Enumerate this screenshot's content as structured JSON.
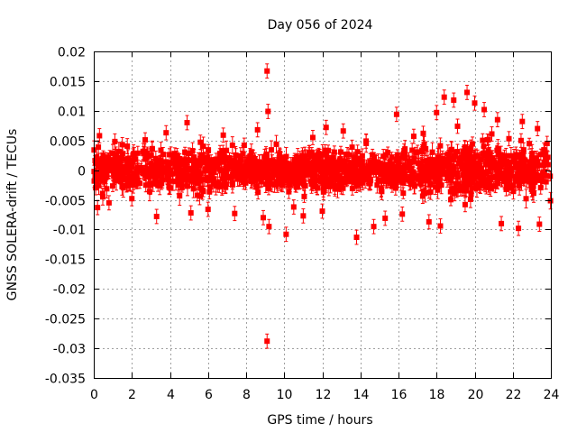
{
  "chart_data": {
    "type": "scatter",
    "title": "Day 056 of 2024",
    "xlabel": "GPS time / hours",
    "ylabel": "GNSS SOLERA-drift / TECUs",
    "xlim": [
      0,
      24
    ],
    "ylim": [
      -0.035,
      0.02
    ],
    "x_ticks": [
      0,
      2,
      4,
      6,
      8,
      10,
      12,
      14,
      16,
      18,
      20,
      22,
      24
    ],
    "x_tick_labels": [
      "0",
      "2",
      "4",
      "6",
      "8",
      "10",
      "12",
      "14",
      "16",
      "18",
      "20",
      "22",
      "24"
    ],
    "y_ticks": [
      0.02,
      0.015,
      0.01,
      0.005,
      0,
      -0.005,
      -0.01,
      -0.015,
      -0.02,
      -0.025,
      -0.03,
      -0.035
    ],
    "y_tick_labels": [
      "0.02",
      "0.015",
      "0.01",
      "0.005",
      "0",
      "-0.005",
      "-0.01",
      "-0.015",
      "-0.02",
      "-0.025",
      "-0.03",
      "-0.035"
    ],
    "grid": true,
    "color": "#ff0000",
    "series": [
      {
        "name": "SOLERA-drift",
        "marker": "square",
        "error_bars": true,
        "points": [
          [
            9.1,
            0.0167
          ],
          [
            9.15,
            0.0099
          ],
          [
            9.1,
            -0.0288
          ],
          [
            9.2,
            -0.0095
          ],
          [
            10.1,
            -0.0108
          ],
          [
            13.8,
            -0.0113
          ],
          [
            19.6,
            0.0131
          ],
          [
            18.4,
            0.0123
          ],
          [
            18.9,
            0.0118
          ],
          [
            20.0,
            0.0113
          ],
          [
            20.5,
            0.0102
          ],
          [
            18.0,
            0.0097
          ],
          [
            15.9,
            0.0094
          ],
          [
            21.2,
            0.0085
          ],
          [
            22.5,
            0.0082
          ],
          [
            4.9,
            0.008
          ],
          [
            12.2,
            0.0072
          ],
          [
            8.6,
            0.0068
          ],
          [
            23.3,
            0.007
          ],
          [
            0.3,
            0.0058
          ],
          [
            0.2,
            -0.0063
          ],
          [
            0.8,
            -0.0055
          ],
          [
            3.3,
            -0.0078
          ],
          [
            5.1,
            -0.0072
          ],
          [
            6.0,
            -0.0066
          ],
          [
            7.4,
            -0.0073
          ],
          [
            8.9,
            -0.008
          ],
          [
            10.5,
            -0.0062
          ],
          [
            11.0,
            -0.0077
          ],
          [
            12.0,
            -0.0069
          ],
          [
            15.3,
            -0.0081
          ],
          [
            14.7,
            -0.0095
          ],
          [
            17.6,
            -0.0087
          ],
          [
            18.2,
            -0.0094
          ],
          [
            21.4,
            -0.009
          ],
          [
            22.3,
            -0.0098
          ],
          [
            23.4,
            -0.0091
          ],
          [
            19.5,
            -0.0058
          ],
          [
            16.2,
            -0.0074
          ],
          [
            2.0,
            -0.0048
          ],
          [
            1.5,
            0.0043
          ],
          [
            2.7,
            0.0051
          ],
          [
            3.8,
            0.0063
          ],
          [
            5.6,
            0.0047
          ],
          [
            6.8,
            0.0059
          ],
          [
            7.9,
            0.0042
          ],
          [
            11.5,
            0.0055
          ],
          [
            13.1,
            0.0066
          ],
          [
            14.3,
            0.0049
          ],
          [
            16.8,
            0.0057
          ],
          [
            17.3,
            0.0062
          ],
          [
            19.1,
            0.0074
          ],
          [
            20.9,
            0.0061
          ],
          [
            21.8,
            0.0053
          ],
          [
            23.8,
            0.0045
          ]
        ]
      }
    ]
  }
}
